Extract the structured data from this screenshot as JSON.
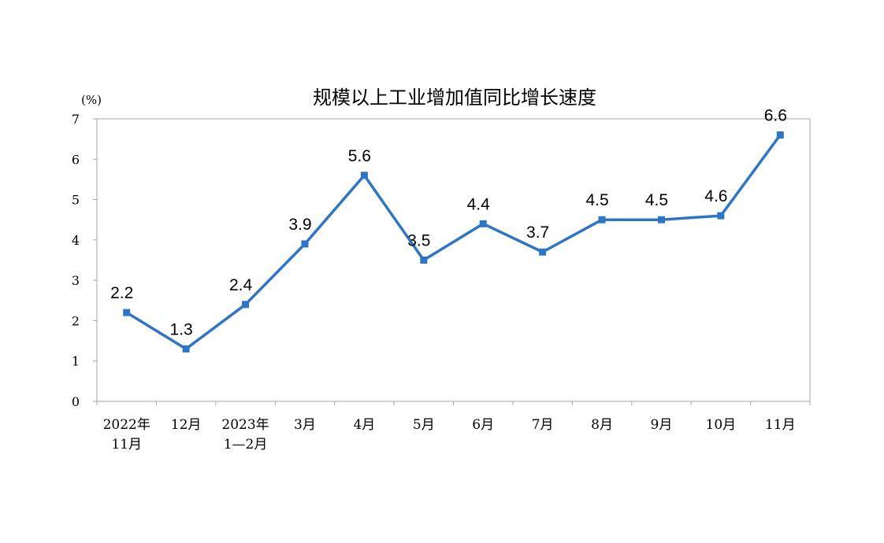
{
  "chart_data": {
    "type": "line",
    "title": "规模以上工业增加值同比增长速度",
    "unit_label": "(%)",
    "xlabel": "",
    "ylabel": "",
    "ylim": [
      0,
      7
    ],
    "yticks": [
      0,
      1,
      2,
      3,
      4,
      5,
      6,
      7
    ],
    "grid": false,
    "legend": "none",
    "categories": [
      [
        "2022年",
        "11月"
      ],
      [
        "12月"
      ],
      [
        "2023年",
        "1—2月"
      ],
      [
        "3月"
      ],
      [
        "4月"
      ],
      [
        "5月"
      ],
      [
        "6月"
      ],
      [
        "7月"
      ],
      [
        "8月"
      ],
      [
        "9月"
      ],
      [
        "10月"
      ],
      [
        "11月"
      ]
    ],
    "series": [
      {
        "values": [
          2.2,
          1.3,
          2.4,
          3.9,
          5.6,
          3.5,
          4.4,
          3.7,
          4.5,
          4.5,
          4.6,
          6.6
        ],
        "labels": [
          "2.2",
          "1.3",
          "2.4",
          "3.9",
          "5.6",
          "3.5",
          "4.4",
          "3.7",
          "4.5",
          "4.5",
          "4.6",
          "6.6"
        ],
        "color": "#2E75C6"
      }
    ]
  }
}
